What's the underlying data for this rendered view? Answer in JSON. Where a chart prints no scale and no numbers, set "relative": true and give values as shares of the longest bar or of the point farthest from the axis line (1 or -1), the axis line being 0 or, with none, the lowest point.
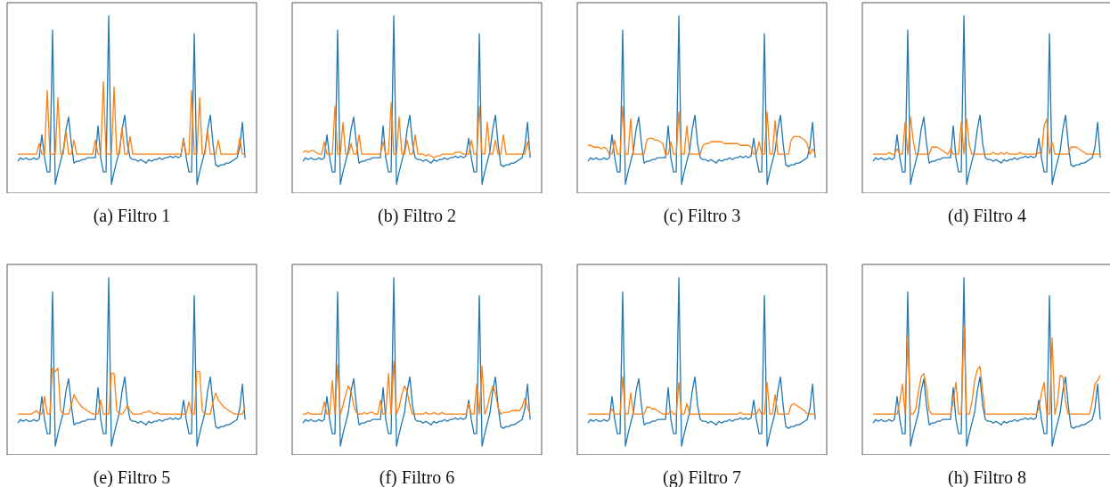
{
  "chart_data": [
    {
      "type": "line",
      "xlabel": "(a) Filtro 1",
      "relative": true,
      "categories": [
        null,
        null,
        null,
        null,
        null,
        null,
        null,
        null,
        null,
        null,
        null,
        null,
        null,
        null,
        null,
        null,
        null,
        null,
        null,
        null,
        null,
        null,
        null,
        null,
        null,
        null,
        null,
        null,
        null,
        null,
        null,
        null,
        null,
        null,
        null,
        null,
        null,
        null,
        null,
        null,
        null,
        null,
        null,
        null,
        null,
        null,
        null,
        null,
        null,
        null,
        null,
        null,
        null,
        null,
        null,
        null,
        null,
        null,
        null,
        null,
        null,
        null,
        null,
        null,
        null,
        null,
        null,
        null,
        null,
        null,
        null,
        null,
        null,
        null,
        null,
        null,
        null,
        null,
        null,
        null,
        null,
        null,
        null,
        null,
        null,
        null
      ],
      "series": [
        {
          "color": "#1f77b4",
          "values": [
            0.18,
            0.2,
            0.19,
            0.2,
            0.19,
            0.19,
            0.2,
            0.19,
            0.2,
            0.33,
            0.2,
            0.12,
            0.12,
            0.92,
            0.05,
            0.12,
            0.18,
            0.24,
            0.36,
            0.43,
            0.28,
            0.17,
            0.18,
            0.18,
            0.19,
            0.19,
            0.2,
            0.2,
            0.2,
            0.2,
            0.38,
            0.2,
            0.12,
            0.12,
            1.0,
            0.05,
            0.12,
            0.18,
            0.24,
            0.36,
            0.44,
            0.28,
            0.2,
            0.19,
            0.19,
            0.18,
            0.19,
            0.18,
            0.17,
            0.19,
            0.18,
            0.19,
            0.19,
            0.2,
            0.19,
            0.2,
            0.2,
            0.21,
            0.2,
            0.21,
            0.2,
            0.21,
            0.31,
            0.2,
            0.12,
            0.12,
            0.9,
            0.05,
            0.12,
            0.18,
            0.24,
            0.36,
            0.44,
            0.28,
            0.16,
            0.15,
            0.16,
            0.16,
            0.17,
            0.17,
            0.18,
            0.19,
            0.2,
            0.26,
            0.4,
            0.2
          ]
        },
        {
          "color": "#ff7f0e",
          "values": [
            0.22,
            0.22,
            0.22,
            0.22,
            0.22,
            0.22,
            0.22,
            0.22,
            0.28,
            0.22,
            0.22,
            0.58,
            0.22,
            0.22,
            0.22,
            0.54,
            0.22,
            0.22,
            0.35,
            0.22,
            0.22,
            0.3,
            0.22,
            0.22,
            0.22,
            0.22,
            0.22,
            0.22,
            0.22,
            0.3,
            0.22,
            0.22,
            0.63,
            0.22,
            0.22,
            0.22,
            0.6,
            0.22,
            0.22,
            0.37,
            0.22,
            0.22,
            0.32,
            0.22,
            0.22,
            0.22,
            0.22,
            0.22,
            0.22,
            0.22,
            0.22,
            0.22,
            0.22,
            0.22,
            0.22,
            0.22,
            0.22,
            0.22,
            0.22,
            0.22,
            0.22,
            0.22,
            0.3,
            0.22,
            0.22,
            0.58,
            0.22,
            0.22,
            0.54,
            0.22,
            0.22,
            0.35,
            0.22,
            0.22,
            0.22,
            0.3,
            0.22,
            0.22,
            0.22,
            0.22,
            0.22,
            0.22,
            0.22,
            0.31,
            0.22,
            0.22
          ]
        }
      ]
    },
    {
      "type": "line",
      "xlabel": "(b) Filtro 2",
      "relative": true,
      "categories": [
        null,
        null,
        null,
        null,
        null,
        null,
        null,
        null,
        null,
        null,
        null,
        null,
        null,
        null,
        null,
        null,
        null,
        null,
        null,
        null,
        null,
        null,
        null,
        null,
        null,
        null,
        null,
        null,
        null,
        null,
        null,
        null,
        null,
        null,
        null,
        null,
        null,
        null,
        null,
        null,
        null,
        null,
        null,
        null,
        null,
        null,
        null,
        null,
        null,
        null,
        null,
        null,
        null,
        null,
        null,
        null,
        null,
        null,
        null,
        null,
        null,
        null,
        null,
        null,
        null,
        null,
        null,
        null,
        null,
        null,
        null,
        null,
        null,
        null,
        null,
        null,
        null,
        null,
        null,
        null,
        null,
        null,
        null,
        null,
        null,
        null
      ],
      "series": [
        {
          "color": "#1f77b4",
          "values": [
            0.18,
            0.2,
            0.19,
            0.2,
            0.19,
            0.19,
            0.2,
            0.19,
            0.2,
            0.33,
            0.2,
            0.12,
            0.12,
            0.92,
            0.05,
            0.12,
            0.18,
            0.24,
            0.36,
            0.43,
            0.28,
            0.17,
            0.18,
            0.18,
            0.19,
            0.19,
            0.2,
            0.2,
            0.2,
            0.2,
            0.38,
            0.2,
            0.12,
            0.12,
            1.0,
            0.05,
            0.12,
            0.18,
            0.24,
            0.36,
            0.44,
            0.28,
            0.2,
            0.19,
            0.19,
            0.18,
            0.19,
            0.18,
            0.17,
            0.19,
            0.18,
            0.19,
            0.19,
            0.2,
            0.19,
            0.2,
            0.2,
            0.21,
            0.2,
            0.21,
            0.2,
            0.21,
            0.31,
            0.2,
            0.12,
            0.12,
            0.9,
            0.05,
            0.12,
            0.18,
            0.24,
            0.36,
            0.44,
            0.28,
            0.16,
            0.15,
            0.16,
            0.16,
            0.17,
            0.17,
            0.18,
            0.19,
            0.2,
            0.26,
            0.4,
            0.2
          ]
        },
        {
          "color": "#ff7f0e",
          "values": [
            0.23,
            0.24,
            0.23,
            0.24,
            0.24,
            0.23,
            0.22,
            0.22,
            0.29,
            0.22,
            0.22,
            0.22,
            0.49,
            0.22,
            0.22,
            0.4,
            0.22,
            0.22,
            0.28,
            0.22,
            0.22,
            0.33,
            0.22,
            0.22,
            0.22,
            0.22,
            0.22,
            0.22,
            0.22,
            0.22,
            0.29,
            0.22,
            0.22,
            0.51,
            0.22,
            0.22,
            0.43,
            0.22,
            0.22,
            0.3,
            0.22,
            0.22,
            0.33,
            0.22,
            0.22,
            0.22,
            0.21,
            0.22,
            0.21,
            0.2,
            0.21,
            0.21,
            0.22,
            0.22,
            0.22,
            0.22,
            0.22,
            0.23,
            0.23,
            0.23,
            0.22,
            0.22,
            0.22,
            0.3,
            0.22,
            0.22,
            0.49,
            0.22,
            0.22,
            0.4,
            0.22,
            0.22,
            0.3,
            0.22,
            0.22,
            0.33,
            0.22,
            0.22,
            0.22,
            0.22,
            0.22,
            0.22,
            0.22,
            0.22,
            0.29,
            0.22
          ]
        }
      ]
    },
    {
      "type": "line",
      "xlabel": "(c) Filtro 3",
      "relative": true,
      "categories": [
        null,
        null,
        null,
        null,
        null,
        null,
        null,
        null,
        null,
        null,
        null,
        null,
        null,
        null,
        null,
        null,
        null,
        null,
        null,
        null,
        null,
        null,
        null,
        null,
        null,
        null,
        null,
        null,
        null,
        null,
        null,
        null,
        null,
        null,
        null,
        null,
        null,
        null,
        null,
        null,
        null,
        null,
        null,
        null,
        null,
        null,
        null,
        null,
        null,
        null,
        null,
        null,
        null,
        null,
        null,
        null,
        null,
        null,
        null,
        null,
        null,
        null,
        null,
        null,
        null,
        null,
        null,
        null,
        null,
        null,
        null,
        null,
        null,
        null,
        null,
        null,
        null,
        null,
        null,
        null,
        null,
        null,
        null,
        null,
        null,
        null
      ],
      "series": [
        {
          "color": "#1f77b4",
          "values": [
            0.18,
            0.2,
            0.19,
            0.2,
            0.19,
            0.19,
            0.2,
            0.19,
            0.2,
            0.33,
            0.2,
            0.12,
            0.12,
            0.92,
            0.05,
            0.12,
            0.18,
            0.24,
            0.36,
            0.43,
            0.28,
            0.17,
            0.18,
            0.18,
            0.19,
            0.19,
            0.2,
            0.2,
            0.2,
            0.2,
            0.38,
            0.2,
            0.12,
            0.12,
            1.0,
            0.05,
            0.12,
            0.18,
            0.24,
            0.36,
            0.44,
            0.28,
            0.2,
            0.19,
            0.19,
            0.18,
            0.19,
            0.18,
            0.17,
            0.19,
            0.18,
            0.19,
            0.19,
            0.2,
            0.19,
            0.2,
            0.2,
            0.21,
            0.2,
            0.21,
            0.2,
            0.21,
            0.31,
            0.2,
            0.12,
            0.12,
            0.9,
            0.05,
            0.12,
            0.18,
            0.24,
            0.36,
            0.44,
            0.28,
            0.16,
            0.15,
            0.16,
            0.16,
            0.17,
            0.17,
            0.18,
            0.19,
            0.2,
            0.26,
            0.4,
            0.2
          ]
        },
        {
          "color": "#ff7f0e",
          "values": [
            0.27,
            0.27,
            0.26,
            0.26,
            0.26,
            0.25,
            0.26,
            0.25,
            0.22,
            0.22,
            0.3,
            0.22,
            0.22,
            0.49,
            0.22,
            0.22,
            0.42,
            0.22,
            0.22,
            0.22,
            0.22,
            0.22,
            0.3,
            0.31,
            0.31,
            0.3,
            0.3,
            0.29,
            0.28,
            0.22,
            0.22,
            0.29,
            0.22,
            0.22,
            0.46,
            0.22,
            0.22,
            0.38,
            0.22,
            0.22,
            0.22,
            0.22,
            0.22,
            0.27,
            0.28,
            0.28,
            0.29,
            0.29,
            0.29,
            0.29,
            0.29,
            0.28,
            0.28,
            0.28,
            0.28,
            0.28,
            0.28,
            0.27,
            0.27,
            0.27,
            0.27,
            0.26,
            0.22,
            0.22,
            0.29,
            0.22,
            0.22,
            0.46,
            0.22,
            0.22,
            0.41,
            0.22,
            0.22,
            0.22,
            0.22,
            0.22,
            0.3,
            0.32,
            0.32,
            0.32,
            0.31,
            0.3,
            0.28,
            0.22,
            0.25,
            0.22
          ]
        }
      ]
    },
    {
      "type": "line",
      "xlabel": "(d) Filtro 4",
      "relative": true,
      "categories": [
        null,
        null,
        null,
        null,
        null,
        null,
        null,
        null,
        null,
        null,
        null,
        null,
        null,
        null,
        null,
        null,
        null,
        null,
        null,
        null,
        null,
        null,
        null,
        null,
        null,
        null,
        null,
        null,
        null,
        null,
        null,
        null,
        null,
        null,
        null,
        null,
        null,
        null,
        null,
        null,
        null,
        null,
        null,
        null,
        null,
        null,
        null,
        null,
        null,
        null,
        null,
        null,
        null,
        null,
        null,
        null,
        null,
        null,
        null,
        null,
        null,
        null,
        null,
        null,
        null,
        null,
        null,
        null,
        null,
        null,
        null,
        null,
        null,
        null,
        null,
        null,
        null,
        null,
        null,
        null,
        null,
        null,
        null,
        null,
        null,
        null
      ],
      "series": [
        {
          "color": "#1f77b4",
          "values": [
            0.18,
            0.2,
            0.19,
            0.2,
            0.19,
            0.19,
            0.2,
            0.19,
            0.2,
            0.33,
            0.2,
            0.12,
            0.12,
            0.92,
            0.05,
            0.12,
            0.18,
            0.24,
            0.36,
            0.43,
            0.28,
            0.17,
            0.18,
            0.18,
            0.19,
            0.19,
            0.2,
            0.2,
            0.2,
            0.2,
            0.38,
            0.2,
            0.12,
            0.12,
            1.0,
            0.05,
            0.12,
            0.18,
            0.24,
            0.36,
            0.44,
            0.28,
            0.2,
            0.19,
            0.19,
            0.18,
            0.19,
            0.18,
            0.17,
            0.19,
            0.18,
            0.19,
            0.19,
            0.2,
            0.19,
            0.2,
            0.2,
            0.21,
            0.2,
            0.21,
            0.2,
            0.21,
            0.31,
            0.2,
            0.12,
            0.12,
            0.9,
            0.05,
            0.12,
            0.18,
            0.24,
            0.36,
            0.44,
            0.28,
            0.16,
            0.15,
            0.16,
            0.16,
            0.17,
            0.17,
            0.18,
            0.19,
            0.2,
            0.26,
            0.4,
            0.2
          ]
        },
        {
          "color": "#ff7f0e",
          "values": [
            0.22,
            0.22,
            0.22,
            0.22,
            0.22,
            0.22,
            0.23,
            0.22,
            0.22,
            0.25,
            0.22,
            0.22,
            0.4,
            0.22,
            0.43,
            0.3,
            0.22,
            0.22,
            0.22,
            0.22,
            0.22,
            0.22,
            0.26,
            0.26,
            0.26,
            0.25,
            0.24,
            0.23,
            0.22,
            0.25,
            0.22,
            0.22,
            0.22,
            0.4,
            0.22,
            0.42,
            0.27,
            0.22,
            0.22,
            0.22,
            0.22,
            0.22,
            0.22,
            0.22,
            0.22,
            0.23,
            0.22,
            0.22,
            0.23,
            0.22,
            0.23,
            0.22,
            0.22,
            0.22,
            0.22,
            0.23,
            0.22,
            0.22,
            0.22,
            0.22,
            0.22,
            0.22,
            0.23,
            0.22,
            0.38,
            0.42,
            0.22,
            0.29,
            0.22,
            0.22,
            0.22,
            0.22,
            0.22,
            0.22,
            0.26,
            0.26,
            0.26,
            0.25,
            0.24,
            0.23,
            0.22,
            0.22,
            0.22,
            0.22,
            0.22,
            0.22
          ]
        }
      ]
    },
    {
      "type": "line",
      "xlabel": "(e) Filtro 5",
      "relative": true,
      "categories": [
        null,
        null,
        null,
        null,
        null,
        null,
        null,
        null,
        null,
        null,
        null,
        null,
        null,
        null,
        null,
        null,
        null,
        null,
        null,
        null,
        null,
        null,
        null,
        null,
        null,
        null,
        null,
        null,
        null,
        null,
        null,
        null,
        null,
        null,
        null,
        null,
        null,
        null,
        null,
        null,
        null,
        null,
        null,
        null,
        null,
        null,
        null,
        null,
        null,
        null,
        null,
        null,
        null,
        null,
        null,
        null,
        null,
        null,
        null,
        null,
        null,
        null,
        null,
        null,
        null,
        null,
        null,
        null,
        null,
        null,
        null,
        null,
        null,
        null,
        null,
        null,
        null,
        null,
        null,
        null,
        null,
        null,
        null,
        null,
        null,
        null
      ],
      "series": [
        {
          "color": "#1f77b4",
          "values": [
            0.18,
            0.2,
            0.19,
            0.2,
            0.19,
            0.19,
            0.2,
            0.19,
            0.2,
            0.33,
            0.2,
            0.12,
            0.12,
            0.92,
            0.05,
            0.12,
            0.18,
            0.24,
            0.36,
            0.43,
            0.28,
            0.17,
            0.18,
            0.18,
            0.19,
            0.19,
            0.2,
            0.2,
            0.2,
            0.2,
            0.38,
            0.2,
            0.12,
            0.12,
            1.0,
            0.05,
            0.12,
            0.18,
            0.24,
            0.36,
            0.44,
            0.28,
            0.2,
            0.19,
            0.19,
            0.18,
            0.19,
            0.18,
            0.17,
            0.19,
            0.18,
            0.19,
            0.19,
            0.2,
            0.19,
            0.2,
            0.2,
            0.21,
            0.2,
            0.21,
            0.2,
            0.21,
            0.31,
            0.2,
            0.12,
            0.12,
            0.9,
            0.05,
            0.12,
            0.18,
            0.24,
            0.36,
            0.44,
            0.28,
            0.16,
            0.15,
            0.16,
            0.16,
            0.17,
            0.17,
            0.18,
            0.19,
            0.2,
            0.26,
            0.4,
            0.2
          ]
        },
        {
          "color": "#ff7f0e",
          "values": [
            0.23,
            0.23,
            0.23,
            0.23,
            0.23,
            0.23,
            0.24,
            0.25,
            0.23,
            0.23,
            0.33,
            0.23,
            0.23,
            0.49,
            0.47,
            0.49,
            0.25,
            0.23,
            0.23,
            0.23,
            0.28,
            0.34,
            0.31,
            0.29,
            0.27,
            0.26,
            0.25,
            0.24,
            0.23,
            0.23,
            0.23,
            0.31,
            0.23,
            0.23,
            0.23,
            0.46,
            0.46,
            0.25,
            0.23,
            0.23,
            0.25,
            0.28,
            0.25,
            0.23,
            0.23,
            0.23,
            0.23,
            0.24,
            0.24,
            0.25,
            0.24,
            0.23,
            0.24,
            0.23,
            0.23,
            0.23,
            0.23,
            0.23,
            0.23,
            0.23,
            0.23,
            0.23,
            0.23,
            0.23,
            0.3,
            0.23,
            0.23,
            0.47,
            0.47,
            0.25,
            0.23,
            0.23,
            0.23,
            0.3,
            0.35,
            0.31,
            0.29,
            0.27,
            0.26,
            0.25,
            0.24,
            0.23,
            0.23,
            0.23,
            0.23,
            0.27
          ]
        }
      ]
    },
    {
      "type": "line",
      "xlabel": "(f) Filtro 6",
      "relative": true,
      "categories": [
        null,
        null,
        null,
        null,
        null,
        null,
        null,
        null,
        null,
        null,
        null,
        null,
        null,
        null,
        null,
        null,
        null,
        null,
        null,
        null,
        null,
        null,
        null,
        null,
        null,
        null,
        null,
        null,
        null,
        null,
        null,
        null,
        null,
        null,
        null,
        null,
        null,
        null,
        null,
        null,
        null,
        null,
        null,
        null,
        null,
        null,
        null,
        null,
        null,
        null,
        null,
        null,
        null,
        null,
        null,
        null,
        null,
        null,
        null,
        null,
        null,
        null,
        null,
        null,
        null,
        null,
        null,
        null,
        null,
        null,
        null,
        null,
        null,
        null,
        null,
        null,
        null,
        null,
        null,
        null,
        null,
        null,
        null,
        null,
        null,
        null
      ],
      "series": [
        {
          "color": "#1f77b4",
          "values": [
            0.18,
            0.2,
            0.19,
            0.2,
            0.19,
            0.19,
            0.2,
            0.19,
            0.2,
            0.33,
            0.2,
            0.12,
            0.12,
            0.92,
            0.05,
            0.12,
            0.18,
            0.24,
            0.36,
            0.43,
            0.28,
            0.17,
            0.18,
            0.18,
            0.19,
            0.19,
            0.2,
            0.2,
            0.2,
            0.2,
            0.38,
            0.2,
            0.12,
            0.12,
            1.0,
            0.05,
            0.12,
            0.18,
            0.24,
            0.36,
            0.44,
            0.28,
            0.2,
            0.19,
            0.19,
            0.18,
            0.19,
            0.18,
            0.17,
            0.19,
            0.18,
            0.19,
            0.19,
            0.2,
            0.19,
            0.2,
            0.2,
            0.21,
            0.2,
            0.21,
            0.2,
            0.21,
            0.31,
            0.2,
            0.12,
            0.12,
            0.9,
            0.05,
            0.12,
            0.18,
            0.24,
            0.36,
            0.44,
            0.28,
            0.16,
            0.15,
            0.16,
            0.16,
            0.17,
            0.17,
            0.18,
            0.19,
            0.2,
            0.26,
            0.4,
            0.2
          ]
        },
        {
          "color": "#ff7f0e",
          "values": [
            0.23,
            0.23,
            0.24,
            0.23,
            0.23,
            0.23,
            0.23,
            0.23,
            0.3,
            0.23,
            0.23,
            0.42,
            0.23,
            0.51,
            0.23,
            0.28,
            0.34,
            0.39,
            0.36,
            0.28,
            0.24,
            0.23,
            0.23,
            0.24,
            0.23,
            0.24,
            0.24,
            0.23,
            0.23,
            0.31,
            0.23,
            0.23,
            0.46,
            0.23,
            0.53,
            0.23,
            0.27,
            0.34,
            0.39,
            0.36,
            0.28,
            0.23,
            0.23,
            0.23,
            0.23,
            0.23,
            0.24,
            0.23,
            0.23,
            0.24,
            0.23,
            0.23,
            0.24,
            0.23,
            0.23,
            0.23,
            0.23,
            0.23,
            0.23,
            0.23,
            0.23,
            0.23,
            0.29,
            0.23,
            0.23,
            0.4,
            0.23,
            0.5,
            0.23,
            0.27,
            0.34,
            0.39,
            0.35,
            0.27,
            0.23,
            0.24,
            0.24,
            0.24,
            0.25,
            0.25,
            0.25,
            0.25,
            0.27,
            0.32,
            0.27,
            0.23
          ]
        }
      ]
    },
    {
      "type": "line",
      "xlabel": "(g) Filtro 7",
      "relative": true,
      "categories": [
        null,
        null,
        null,
        null,
        null,
        null,
        null,
        null,
        null,
        null,
        null,
        null,
        null,
        null,
        null,
        null,
        null,
        null,
        null,
        null,
        null,
        null,
        null,
        null,
        null,
        null,
        null,
        null,
        null,
        null,
        null,
        null,
        null,
        null,
        null,
        null,
        null,
        null,
        null,
        null,
        null,
        null,
        null,
        null,
        null,
        null,
        null,
        null,
        null,
        null,
        null,
        null,
        null,
        null,
        null,
        null,
        null,
        null,
        null,
        null,
        null,
        null,
        null,
        null,
        null,
        null,
        null,
        null,
        null,
        null,
        null,
        null,
        null,
        null,
        null,
        null,
        null,
        null,
        null,
        null,
        null,
        null,
        null,
        null,
        null,
        null
      ],
      "series": [
        {
          "color": "#1f77b4",
          "values": [
            0.18,
            0.2,
            0.19,
            0.2,
            0.19,
            0.19,
            0.2,
            0.19,
            0.2,
            0.33,
            0.2,
            0.12,
            0.12,
            0.92,
            0.05,
            0.12,
            0.18,
            0.24,
            0.36,
            0.43,
            0.28,
            0.17,
            0.18,
            0.18,
            0.19,
            0.19,
            0.2,
            0.2,
            0.2,
            0.2,
            0.38,
            0.2,
            0.12,
            0.12,
            1.0,
            0.05,
            0.12,
            0.18,
            0.24,
            0.36,
            0.44,
            0.28,
            0.2,
            0.19,
            0.19,
            0.18,
            0.19,
            0.18,
            0.17,
            0.19,
            0.18,
            0.19,
            0.19,
            0.2,
            0.19,
            0.2,
            0.2,
            0.21,
            0.2,
            0.21,
            0.2,
            0.21,
            0.31,
            0.2,
            0.12,
            0.12,
            0.9,
            0.05,
            0.12,
            0.18,
            0.24,
            0.36,
            0.44,
            0.28,
            0.16,
            0.15,
            0.16,
            0.16,
            0.17,
            0.17,
            0.18,
            0.19,
            0.2,
            0.26,
            0.4,
            0.2
          ]
        },
        {
          "color": "#ff7f0e",
          "values": [
            0.23,
            0.23,
            0.23,
            0.23,
            0.23,
            0.23,
            0.23,
            0.23,
            0.23,
            0.26,
            0.23,
            0.23,
            0.23,
            0.44,
            0.23,
            0.23,
            0.35,
            0.23,
            0.23,
            0.23,
            0.23,
            0.23,
            0.27,
            0.27,
            0.26,
            0.26,
            0.25,
            0.24,
            0.23,
            0.23,
            0.23,
            0.25,
            0.23,
            0.23,
            0.41,
            0.23,
            0.23,
            0.29,
            0.23,
            0.23,
            0.23,
            0.23,
            0.23,
            0.23,
            0.23,
            0.23,
            0.23,
            0.23,
            0.23,
            0.23,
            0.23,
            0.23,
            0.23,
            0.23,
            0.23,
            0.23,
            0.23,
            0.24,
            0.23,
            0.23,
            0.23,
            0.23,
            0.23,
            0.23,
            0.26,
            0.23,
            0.23,
            0.41,
            0.23,
            0.23,
            0.34,
            0.23,
            0.23,
            0.23,
            0.23,
            0.23,
            0.28,
            0.29,
            0.28,
            0.27,
            0.26,
            0.25,
            0.23,
            0.23,
            0.23,
            0.23
          ]
        }
      ]
    },
    {
      "type": "line",
      "xlabel": "(h) Filtro 8",
      "relative": true,
      "categories": [
        null,
        null,
        null,
        null,
        null,
        null,
        null,
        null,
        null,
        null,
        null,
        null,
        null,
        null,
        null,
        null,
        null,
        null,
        null,
        null,
        null,
        null,
        null,
        null,
        null,
        null,
        null,
        null,
        null,
        null,
        null,
        null,
        null,
        null,
        null,
        null,
        null,
        null,
        null,
        null,
        null,
        null,
        null,
        null,
        null,
        null,
        null,
        null,
        null,
        null,
        null,
        null,
        null,
        null,
        null,
        null,
        null,
        null,
        null,
        null,
        null,
        null,
        null,
        null,
        null,
        null,
        null,
        null,
        null,
        null,
        null,
        null,
        null,
        null,
        null,
        null,
        null,
        null,
        null,
        null,
        null,
        null,
        null,
        null,
        null,
        null
      ],
      "series": [
        {
          "color": "#1f77b4",
          "values": [
            0.18,
            0.2,
            0.19,
            0.2,
            0.19,
            0.19,
            0.2,
            0.19,
            0.2,
            0.33,
            0.2,
            0.12,
            0.12,
            0.92,
            0.05,
            0.12,
            0.18,
            0.24,
            0.36,
            0.43,
            0.28,
            0.17,
            0.18,
            0.18,
            0.19,
            0.19,
            0.2,
            0.2,
            0.2,
            0.2,
            0.38,
            0.2,
            0.12,
            0.12,
            1.0,
            0.05,
            0.12,
            0.18,
            0.24,
            0.36,
            0.44,
            0.28,
            0.2,
            0.19,
            0.19,
            0.18,
            0.19,
            0.18,
            0.17,
            0.19,
            0.18,
            0.19,
            0.19,
            0.2,
            0.19,
            0.2,
            0.2,
            0.21,
            0.2,
            0.21,
            0.2,
            0.21,
            0.31,
            0.2,
            0.12,
            0.12,
            0.9,
            0.05,
            0.12,
            0.18,
            0.24,
            0.36,
            0.44,
            0.28,
            0.16,
            0.15,
            0.16,
            0.16,
            0.17,
            0.17,
            0.18,
            0.19,
            0.2,
            0.26,
            0.4,
            0.2
          ]
        },
        {
          "color": "#ff7f0e",
          "values": [
            0.23,
            0.23,
            0.23,
            0.23,
            0.23,
            0.23,
            0.23,
            0.23,
            0.23,
            0.23,
            0.3,
            0.4,
            0.23,
            0.67,
            0.23,
            0.23,
            0.26,
            0.36,
            0.44,
            0.46,
            0.38,
            0.25,
            0.23,
            0.23,
            0.23,
            0.23,
            0.23,
            0.23,
            0.23,
            0.23,
            0.3,
            0.41,
            0.23,
            0.23,
            0.73,
            0.23,
            0.23,
            0.3,
            0.42,
            0.48,
            0.5,
            0.36,
            0.23,
            0.23,
            0.23,
            0.23,
            0.23,
            0.23,
            0.23,
            0.23,
            0.23,
            0.23,
            0.23,
            0.23,
            0.23,
            0.23,
            0.23,
            0.23,
            0.23,
            0.23,
            0.23,
            0.23,
            0.26,
            0.35,
            0.41,
            0.23,
            0.23,
            0.66,
            0.23,
            0.3,
            0.45,
            0.44,
            0.3,
            0.23,
            0.23,
            0.23,
            0.23,
            0.23,
            0.23,
            0.23,
            0.23,
            0.23,
            0.3,
            0.4,
            0.42,
            0.45
          ]
        }
      ]
    }
  ]
}
